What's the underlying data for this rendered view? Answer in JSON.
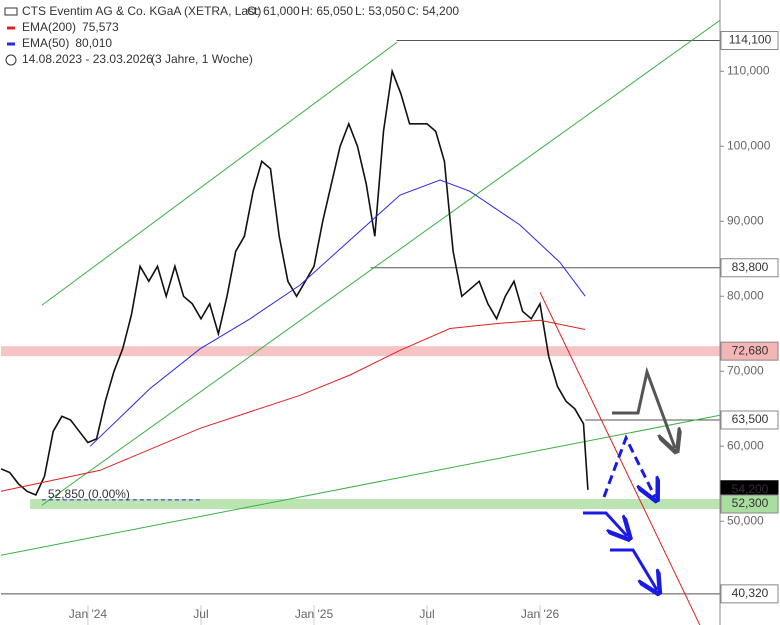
{
  "chart_data": {
    "type": "line",
    "title": "CTS Eventim AG & Co. KGaA (XETRA, Last)",
    "quote": [
      "O: 61,000",
      "H: 65,050",
      "L: 53,050",
      "C: 54,200"
    ],
    "period": "14.08.2023 - 23.03.2026",
    "period_note": "(3 Jahre, 1 Woche)",
    "xlim": [
      0,
      165.4
    ],
    "ylim": [
      39500,
      119500
    ],
    "xticks": [
      {
        "value": 20,
        "label": "Jan '24"
      },
      {
        "value": 46,
        "label": "Jul"
      },
      {
        "value": 72,
        "label": "Jan '25"
      },
      {
        "value": 98,
        "label": "Jul"
      },
      {
        "value": 124,
        "label": "Jan '26"
      }
    ],
    "yticks": [
      {
        "value": 50000,
        "label": "50,000"
      },
      {
        "value": 60000,
        "label": "60,000"
      },
      {
        "value": 70000,
        "label": "70,000"
      },
      {
        "value": 80000,
        "label": "80,000"
      },
      {
        "value": 90000,
        "label": "90,000"
      },
      {
        "value": 100000,
        "label": "100,000"
      },
      {
        "value": 110000,
        "label": "110,000"
      }
    ],
    "series": [
      {
        "color": "#111111",
        "x": [
          0,
          2,
          4,
          6,
          8,
          10,
          12,
          14,
          16,
          18,
          20,
          22,
          24,
          26,
          28,
          30,
          32,
          34,
          36,
          38,
          40,
          42,
          44,
          46,
          48,
          50,
          52,
          54,
          56,
          58,
          60,
          62,
          64,
          66,
          68,
          70,
          72,
          74,
          76,
          78,
          80,
          82,
          84,
          86,
          88,
          90,
          92,
          94,
          96,
          98,
          100,
          102,
          104,
          106,
          108,
          110,
          112,
          114,
          116,
          118,
          120,
          122,
          124,
          126,
          128,
          130,
          132,
          134,
          135
        ],
        "values": [
          57000,
          56500,
          55000,
          54000,
          53500,
          56000,
          62000,
          64000,
          63500,
          62000,
          60500,
          61000,
          66000,
          70000,
          73000,
          77500,
          84000,
          82000,
          84000,
          80000,
          84000,
          80000,
          79000,
          77000,
          79000,
          75000,
          80000,
          86000,
          88000,
          94000,
          98000,
          97000,
          88000,
          82000,
          80000,
          82000,
          84000,
          90000,
          95000,
          100000,
          103000,
          100000,
          95000,
          88000,
          102000,
          110000,
          107000,
          103000,
          103000,
          103000,
          102000,
          98000,
          86000,
          80000,
          81000,
          82000,
          79000,
          77000,
          80000,
          82000,
          78000,
          77000,
          79000,
          72000,
          68000,
          66000,
          65000,
          63000,
          54200
        ]
      },
      {
        "name": "EMA(200)",
        "legend_value": "75,573",
        "color": "#e02020",
        "x": [
          0,
          22.8,
          45.8,
          68.8,
          80.3,
          91.8,
          103.3,
          114.8,
          124,
          134.4
        ],
        "values": [
          54000,
          56800,
          62400,
          66800,
          69500,
          72800,
          75700,
          76400,
          76800,
          75573
        ]
      },
      {
        "name": "EMA(50)",
        "legend_value": "80,010",
        "color": "#2a2ae0",
        "x": [
          20.5,
          34.3,
          45.8,
          57.3,
          68.8,
          80.3,
          91.8,
          101,
          107.9,
          119.4,
          128.6,
          134.4
        ],
        "values": [
          60000,
          67700,
          73000,
          77000,
          81500,
          87500,
          93500,
          95500,
          94000,
          89500,
          84500,
          80010
        ]
      }
    ],
    "levels": [
      {
        "value": 114100,
        "label": "114,100",
        "from": 91,
        "color": "#555555"
      },
      {
        "value": 83800,
        "label": "83,800",
        "from": 85,
        "color": "#555555"
      },
      {
        "value": 72680,
        "label": "72,680",
        "from": 0,
        "color": "#f4b5b5",
        "band": true
      },
      {
        "value": 63500,
        "label": "63,500",
        "from": 134.4,
        "color": "#555555"
      },
      {
        "value": 54200,
        "label": "54,200",
        "color": "#000000",
        "current": true
      },
      {
        "value": 52300,
        "label": "52,300",
        "from": 6.7,
        "color": "#a9dea0",
        "band": true
      },
      {
        "value": 40320,
        "label": "40,320",
        "from": 0,
        "color": "#555555"
      }
    ],
    "low_marker": {
      "value": 52850,
      "label": "52,850 (0.00%)",
      "from": 9.4,
      "to": 45.8,
      "color": "#2a2ae0"
    },
    "trendlines": [
      {
        "color": "#3cb043",
        "x": [
          9.4,
          91.1
        ],
        "values": [
          78800,
          113867
        ]
      },
      {
        "color": "#3cb043",
        "x": [
          9.4,
          165.4
        ],
        "values": [
          52130,
          116800
        ]
      },
      {
        "color": "#3cb043",
        "x": [
          0,
          165.4
        ],
        "values": [
          45470,
          64130
        ]
      },
      {
        "color": "#e02020",
        "x": [
          124,
          160.8
        ],
        "values": [
          80530,
          36130
        ]
      }
    ]
  }
}
